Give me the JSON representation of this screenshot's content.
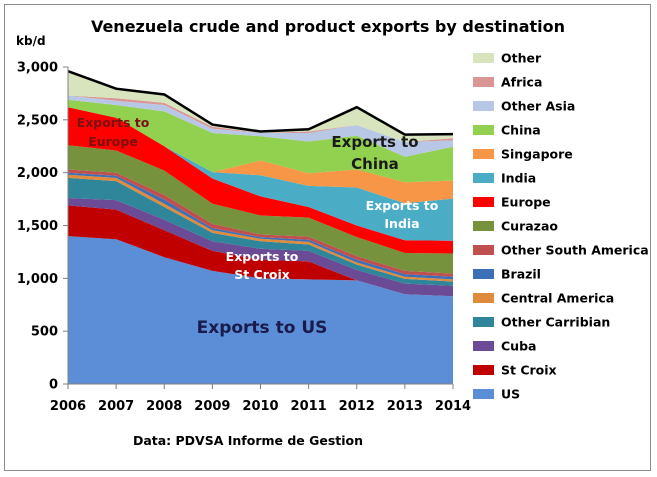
{
  "chart_data": {
    "type": "area",
    "stacked": true,
    "title": "Venezuela crude and product exports by destination",
    "unit_label": "kb/d",
    "source_note": "Data: PDVSA Informe de Gestion",
    "x": [
      "2006",
      "2007",
      "2008",
      "2009",
      "2010",
      "2011",
      "2012",
      "2013",
      "2014"
    ],
    "ylim": [
      0,
      3000
    ],
    "yticks": [
      "0",
      "500",
      "1,000",
      "1,500",
      "2,000",
      "2,500",
      "3,000"
    ],
    "ytick_values": [
      0,
      500,
      1000,
      1500,
      2000,
      2500,
      3000
    ],
    "grid": false,
    "legend_position": "right",
    "series": [
      {
        "name": "US",
        "color": "#5b8ed6",
        "values": [
          1400,
          1370,
          1200,
          1070,
          1000,
          990,
          980,
          850,
          830
        ]
      },
      {
        "name": "St Croix",
        "color": "#c00000",
        "values": [
          290,
          280,
          255,
          190,
          175,
          170,
          0,
          0,
          0
        ]
      },
      {
        "name": "Cuba",
        "color": "#6b4b95",
        "values": [
          70,
          90,
          100,
          90,
          105,
          100,
          100,
          100,
          100
        ]
      },
      {
        "name": "Other Carribian",
        "color": "#2f8599",
        "values": [
          190,
          180,
          120,
          80,
          70,
          60,
          50,
          45,
          40
        ]
      },
      {
        "name": "Central America",
        "color": "#e08a3c",
        "values": [
          30,
          30,
          30,
          25,
          25,
          25,
          20,
          20,
          20
        ]
      },
      {
        "name": "Brazil",
        "color": "#3d6fb6",
        "values": [
          20,
          20,
          40,
          20,
          15,
          20,
          25,
          25,
          25
        ]
      },
      {
        "name": "Other South America",
        "color": "#c0504d",
        "values": [
          30,
          30,
          45,
          40,
          25,
          30,
          35,
          30,
          30
        ]
      },
      {
        "name": "Curazao",
        "color": "#76923c",
        "values": [
          230,
          210,
          230,
          190,
          180,
          180,
          180,
          170,
          190
        ]
      },
      {
        "name": "Europe",
        "color": "#ff0000",
        "values": [
          360,
          310,
          230,
          240,
          180,
          100,
          110,
          120,
          120
        ]
      },
      {
        "name": "India",
        "color": "#4bacc6",
        "values": [
          0,
          0,
          0,
          60,
          200,
          200,
          360,
          350,
          400
        ]
      },
      {
        "name": "Singapore",
        "color": "#f79646",
        "values": [
          0,
          0,
          0,
          0,
          140,
          120,
          170,
          200,
          170
        ]
      },
      {
        "name": "China",
        "color": "#92d050",
        "values": [
          70,
          120,
          330,
          370,
          230,
          300,
          320,
          240,
          320
        ]
      },
      {
        "name": "Other Asia",
        "color": "#b8c7e6",
        "values": [
          40,
          40,
          60,
          40,
          30,
          80,
          100,
          140,
          60
        ]
      },
      {
        "name": "Africa",
        "color": "#d99694",
        "values": [
          0,
          25,
          20,
          20,
          0,
          15,
          0,
          0,
          20
        ]
      },
      {
        "name": "Other",
        "color": "#d7e4bd",
        "values": [
          230,
          90,
          80,
          20,
          15,
          20,
          170,
          70,
          40
        ]
      }
    ],
    "total_line_color": "#000000",
    "annotations": [
      {
        "lines": [
          "Exports to US"
        ],
        "color": "#1a1a4d",
        "size": 17
      },
      {
        "lines": [
          "Exports to",
          "St Croix"
        ],
        "color": "#ffffff",
        "size": 12.5
      },
      {
        "lines": [
          "Exports to",
          "Europe"
        ],
        "color": "#7a1010",
        "size": 12.5
      },
      {
        "lines": [
          "Exports to",
          "China"
        ],
        "color": "#1a1a1a",
        "size": 15
      },
      {
        "lines": [
          "Exports to",
          "India"
        ],
        "color": "#ffffff",
        "size": 12.5
      }
    ]
  }
}
